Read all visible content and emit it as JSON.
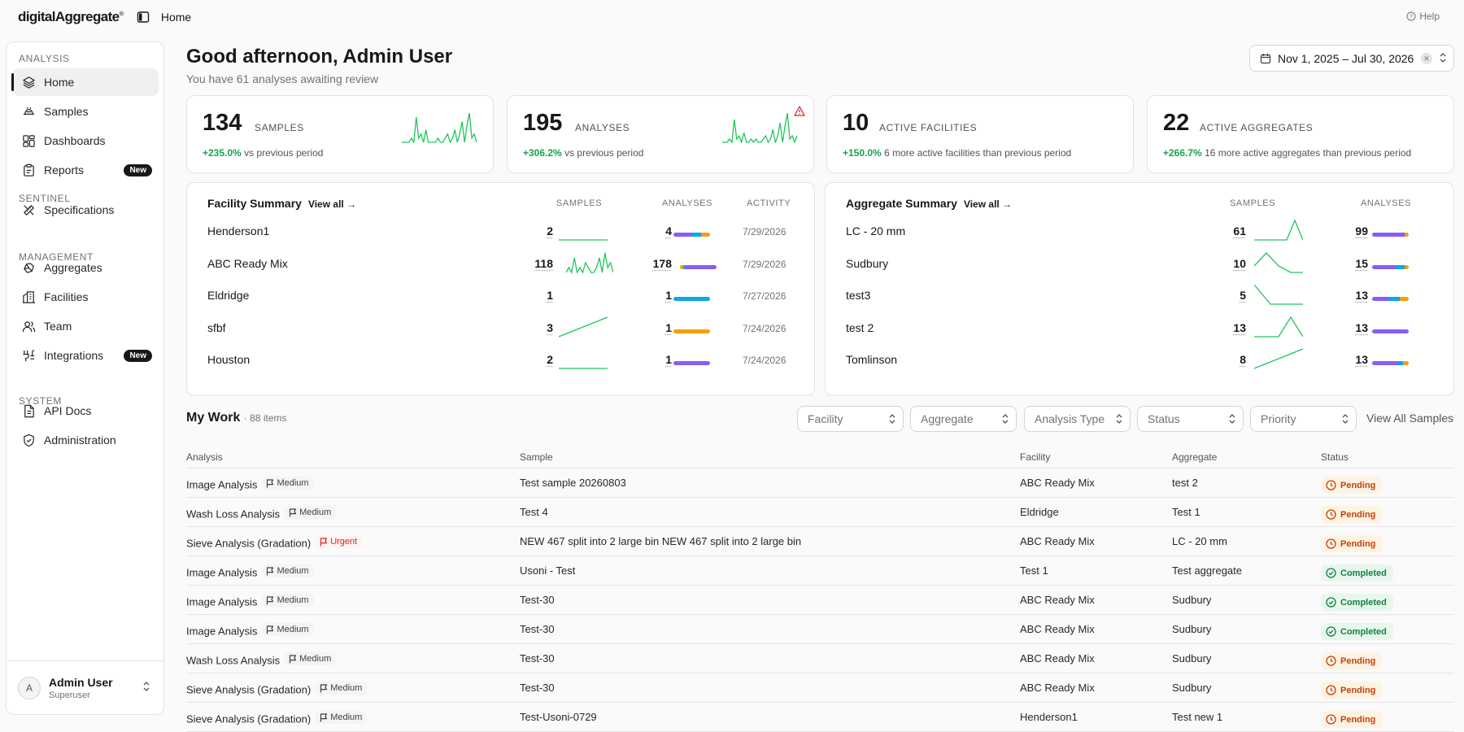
{
  "app": {
    "logo": "digitalAggregate",
    "logo_mark": "®",
    "breadcrumb": "Home",
    "help": "Help"
  },
  "sidebar": {
    "sections": [
      {
        "label": "ANALYSIS",
        "items": [
          {
            "label": "Home",
            "icon": "layers-icon",
            "active": true
          },
          {
            "label": "Samples",
            "icon": "samples-icon"
          },
          {
            "label": "Dashboards",
            "icon": "dashboard-icon"
          },
          {
            "label": "Reports",
            "icon": "clipboard-icon",
            "badge": "New"
          }
        ]
      },
      {
        "label": "SENTINEL",
        "items": [
          {
            "label": "Specifications",
            "icon": "ruler-icon"
          }
        ]
      },
      {
        "label": "MANAGEMENT",
        "items": [
          {
            "label": "Aggregates",
            "icon": "stones-icon"
          },
          {
            "label": "Facilities",
            "icon": "building-icon"
          },
          {
            "label": "Team",
            "icon": "users-icon"
          },
          {
            "label": "Integrations",
            "icon": "plug-icon",
            "badge": "New"
          }
        ]
      },
      {
        "label": "SYSTEM",
        "items": [
          {
            "label": "API Docs",
            "icon": "doc-icon"
          },
          {
            "label": "Administration",
            "icon": "shield-icon"
          }
        ]
      }
    ],
    "user": {
      "initial": "A",
      "name": "Admin User",
      "role": "Superuser"
    }
  },
  "header": {
    "greeting": "Good afternoon, Admin User",
    "subtitle": "You have 61 analyses awaiting review",
    "date_range": "Nov 1, 2025 – Jul 30, 2026"
  },
  "stats": [
    {
      "value": "134",
      "label": "SAMPLES",
      "change": "+235.0%",
      "change_text": "vs previous period",
      "sparkline": [
        0,
        0,
        0,
        0,
        1,
        0,
        6,
        1,
        2,
        0,
        3,
        0,
        0,
        0,
        0,
        1,
        0,
        0,
        1,
        2,
        0,
        1,
        3,
        0,
        2,
        5,
        0,
        4,
        7,
        1,
        2,
        0
      ]
    },
    {
      "value": "195",
      "label": "ANALYSES",
      "change": "+306.2%",
      "change_text": "vs previous period",
      "warning": true,
      "sparkline": [
        0,
        0,
        0,
        1,
        0,
        7,
        1,
        2,
        0,
        3,
        0,
        0,
        1,
        0,
        1,
        0,
        0,
        1,
        2,
        0,
        1,
        4,
        0,
        2,
        6,
        0,
        5,
        9,
        1,
        2,
        0,
        2
      ]
    },
    {
      "value": "10",
      "label": "ACTIVE FACILITIES",
      "change": "+150.0%",
      "change_text": "6 more active facilities than previous period"
    },
    {
      "value": "22",
      "label": "ACTIVE AGGREGATES",
      "change": "+266.7%",
      "change_text": "16 more active aggregates than previous period"
    }
  ],
  "facility_summary": {
    "title": "Facility Summary",
    "view_all": "View all →",
    "columns": [
      "SAMPLES",
      "ANALYSES",
      "ACTIVITY"
    ],
    "rows": [
      {
        "name": "Henderson1",
        "samples": "2",
        "analyses": "4",
        "activity": "7/29/2026",
        "trend": [
          0,
          0,
          0,
          0
        ],
        "mix": [
          [
            "#8b5cf6",
            0.5
          ],
          [
            "#0ea5e9",
            0.25
          ],
          [
            "#f59e0b",
            0.25
          ]
        ]
      },
      {
        "name": "ABC Ready Mix",
        "samples": "118",
        "analyses": "178",
        "activity": "7/29/2026",
        "trend": [
          0,
          1,
          0,
          3,
          0,
          1,
          0,
          2,
          1,
          0,
          0,
          1,
          3,
          0,
          4,
          1,
          2,
          0
        ],
        "mix": [
          [
            "#f59e0b",
            0.08
          ],
          [
            "#0ea5e9",
            0.07
          ],
          [
            "#8b5cf6",
            0.85
          ]
        ]
      },
      {
        "name": "Eldridge",
        "samples": "1",
        "analyses": "1",
        "activity": "7/27/2026",
        "trend": null,
        "mix": [
          [
            "#0ea5e9",
            1
          ]
        ]
      },
      {
        "name": "sfbf",
        "samples": "3",
        "analyses": "1",
        "activity": "7/24/2026",
        "trend": [
          0,
          3
        ],
        "mix": [
          [
            "#f59e0b",
            1
          ]
        ]
      },
      {
        "name": "Houston",
        "samples": "2",
        "analyses": "1",
        "activity": "7/24/2026",
        "trend": [
          0,
          0,
          0
        ],
        "mix": [
          [
            "#8b5cf6",
            1
          ]
        ]
      }
    ]
  },
  "aggregate_summary": {
    "title": "Aggregate Summary",
    "view_all": "View all →",
    "columns": [
      "SAMPLES",
      "ANALYSES"
    ],
    "rows": [
      {
        "name": "LC - 20 mm",
        "samples": "61",
        "analyses": "99",
        "trend": [
          0,
          0,
          0,
          0,
          0,
          3,
          0
        ],
        "mix": [
          [
            "#8b5cf6",
            0.9
          ],
          [
            "#f59e0b",
            0.1
          ]
        ]
      },
      {
        "name": "Sudbury",
        "samples": "10",
        "analyses": "15",
        "trend": [
          1,
          3,
          1,
          0,
          0
        ],
        "mix": [
          [
            "#8b5cf6",
            0.65
          ],
          [
            "#0ea5e9",
            0.25
          ],
          [
            "#f59e0b",
            0.1
          ]
        ]
      },
      {
        "name": "test3",
        "samples": "5",
        "analyses": "13",
        "trend": [
          3,
          0,
          0,
          0
        ],
        "mix": [
          [
            "#8b5cf6",
            0.45
          ],
          [
            "#0ea5e9",
            0.3
          ],
          [
            "#f59e0b",
            0.25
          ]
        ]
      },
      {
        "name": "test 2",
        "samples": "13",
        "analyses": "13",
        "trend": [
          0,
          0,
          0,
          3,
          0
        ],
        "mix": [
          [
            "#8b5cf6",
            1
          ]
        ]
      },
      {
        "name": "Tomlinson",
        "samples": "8",
        "analyses": "13",
        "trend": [
          0,
          3
        ],
        "mix": [
          [
            "#8b5cf6",
            0.7
          ],
          [
            "#0ea5e9",
            0.15
          ],
          [
            "#f59e0b",
            0.15
          ]
        ]
      }
    ]
  },
  "mywork": {
    "title": "My Work",
    "count": "· 88 items",
    "filters": [
      "Facility",
      "Aggregate",
      "Analysis Type",
      "Status",
      "Priority"
    ],
    "view_all": "View All Samples",
    "columns": [
      "Analysis",
      "Sample",
      "Facility",
      "Aggregate",
      "Status"
    ],
    "rows": [
      {
        "analysis": "Image Analysis",
        "priority": "Medium",
        "sample": "Test sample 20260803",
        "facility": "ABC Ready Mix",
        "aggregate": "test 2",
        "status": "Pending"
      },
      {
        "analysis": "Wash Loss Analysis",
        "priority": "Medium",
        "sample": "Test 4",
        "facility": "Eldridge",
        "aggregate": "Test 1",
        "status": "Pending"
      },
      {
        "analysis": "Sieve Analysis (Gradation)",
        "priority": "Urgent",
        "sample": "NEW 467 split into 2 large bin NEW 467 split into 2 large bin",
        "facility": "ABC Ready Mix",
        "aggregate": "LC - 20 mm",
        "status": "Pending"
      },
      {
        "analysis": "Image Analysis",
        "priority": "Medium",
        "sample": "Usoni - Test",
        "facility": "Test 1",
        "aggregate": "Test aggregate",
        "status": "Completed"
      },
      {
        "analysis": "Image Analysis",
        "priority": "Medium",
        "sample": "Test-30",
        "facility": "ABC Ready Mix",
        "aggregate": "Sudbury",
        "status": "Completed"
      },
      {
        "analysis": "Image Analysis",
        "priority": "Medium",
        "sample": "Test-30",
        "facility": "ABC Ready Mix",
        "aggregate": "Sudbury",
        "status": "Completed"
      },
      {
        "analysis": "Wash Loss Analysis",
        "priority": "Medium",
        "sample": "Test-30",
        "facility": "ABC Ready Mix",
        "aggregate": "Sudbury",
        "status": "Pending"
      },
      {
        "analysis": "Sieve Analysis (Gradation)",
        "priority": "Medium",
        "sample": "Test-30",
        "facility": "ABC Ready Mix",
        "aggregate": "Sudbury",
        "status": "Pending"
      },
      {
        "analysis": "Sieve Analysis (Gradation)",
        "priority": "Medium",
        "sample": "Test-Usoni-0729",
        "facility": "Henderson1",
        "aggregate": "Test new 1",
        "status": "Pending"
      }
    ]
  },
  "colors": {
    "accent": "#18181b",
    "positive": "#16a34a",
    "spark": "#22c55e",
    "pending": "#c2410c",
    "completed": "#15803d",
    "urgent": "#dc2626"
  }
}
